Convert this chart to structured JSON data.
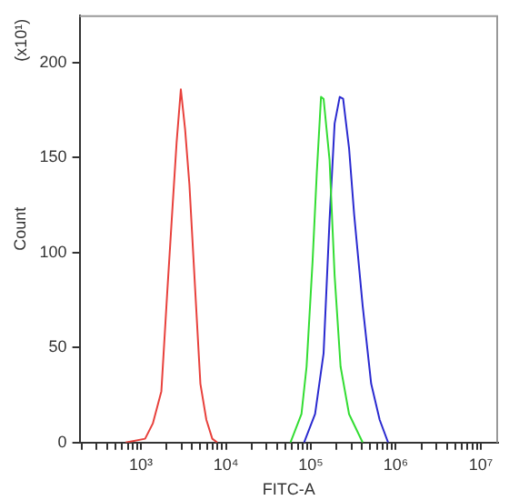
{
  "chart_data": {
    "type": "line",
    "xlabel": "FITC-A",
    "ylabel": "Count",
    "annotations": [
      "(x10¹)"
    ],
    "log": "x",
    "grid": false,
    "legend": false,
    "marker": "none",
    "line_style": "solid",
    "xlim": [
      190,
      16000000
    ],
    "ylim": [
      0,
      225
    ],
    "xticks": [
      {
        "value": 200,
        "label": null
      },
      {
        "value": 300,
        "label": null
      },
      {
        "value": 400,
        "label": null
      },
      {
        "value": 500,
        "label": null
      },
      {
        "value": 600,
        "label": null
      },
      {
        "value": 700,
        "label": null
      },
      {
        "value": 800,
        "label": null
      },
      {
        "value": 900,
        "label": null
      },
      {
        "value": 1000,
        "label": "10³"
      },
      {
        "value": 2000,
        "label": null
      },
      {
        "value": 3000,
        "label": null
      },
      {
        "value": 4000,
        "label": null
      },
      {
        "value": 5000,
        "label": null
      },
      {
        "value": 6000,
        "label": null
      },
      {
        "value": 7000,
        "label": null
      },
      {
        "value": 8000,
        "label": null
      },
      {
        "value": 9000,
        "label": null
      },
      {
        "value": 10000,
        "label": "10⁴"
      },
      {
        "value": 20000,
        "label": null
      },
      {
        "value": 30000,
        "label": null
      },
      {
        "value": 40000,
        "label": null
      },
      {
        "value": 50000,
        "label": null
      },
      {
        "value": 60000,
        "label": null
      },
      {
        "value": 70000,
        "label": null
      },
      {
        "value": 80000,
        "label": null
      },
      {
        "value": 90000,
        "label": null
      },
      {
        "value": 100000,
        "label": "10⁵"
      },
      {
        "value": 200000,
        "label": null
      },
      {
        "value": 300000,
        "label": null
      },
      {
        "value": 400000,
        "label": null
      },
      {
        "value": 500000,
        "label": null
      },
      {
        "value": 600000,
        "label": null
      },
      {
        "value": 700000,
        "label": null
      },
      {
        "value": 800000,
        "label": null
      },
      {
        "value": 900000,
        "label": null
      },
      {
        "value": 1000000,
        "label": "10⁶"
      },
      {
        "value": 2000000,
        "label": null
      },
      {
        "value": 3000000,
        "label": null
      },
      {
        "value": 4000000,
        "label": null
      },
      {
        "value": 5000000,
        "label": null
      },
      {
        "value": 6000000,
        "label": null
      },
      {
        "value": 7000000,
        "label": null
      },
      {
        "value": 8000000,
        "label": null
      },
      {
        "value": 9000000,
        "label": null
      },
      {
        "value": 10000000,
        "label": "10⁷"
      }
    ],
    "yticks": [
      0,
      50,
      100,
      150,
      200
    ],
    "series": [
      {
        "color": "#e8413c",
        "x": [
          660,
          1120,
          1380,
          1740,
          2040,
          2370,
          2630,
          2950,
          3310,
          3720,
          4370,
          5010,
          5890,
          6920,
          7940
        ],
        "values": [
          0,
          2,
          10,
          27,
          79,
          126,
          158,
          186,
          165,
          136,
          79,
          31,
          12,
          2,
          0
        ]
      },
      {
        "color": "#33dd33",
        "x": [
          57500,
          77600,
          89100,
          104700,
          117500,
          131800,
          141300,
          166000,
          190500,
          223900,
          281800,
          407400
        ],
        "values": [
          0,
          15,
          40,
          95,
          142,
          182,
          181,
          149,
          88,
          40,
          15,
          0
        ]
      },
      {
        "color": "#2a2ad0",
        "x": [
          83200,
          112200,
          141300,
          166000,
          190500,
          218800,
          239900,
          281800,
          323600,
          407400,
          512900,
          645700,
          812800
        ],
        "values": [
          0,
          15,
          47,
          117,
          168,
          182,
          181,
          155,
          120,
          72,
          31,
          12,
          0
        ]
      }
    ]
  }
}
